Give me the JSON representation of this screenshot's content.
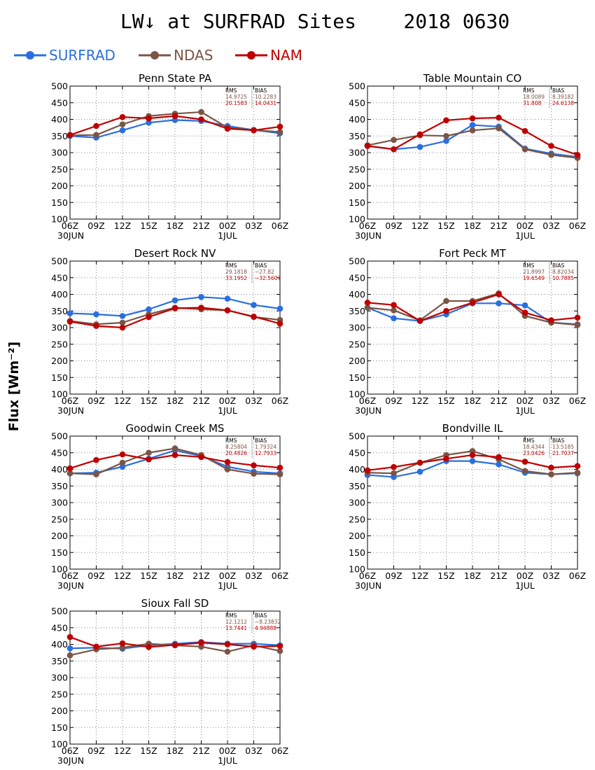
{
  "title": "LW↓ at SURFRAD Sites    2018 0630",
  "ylabel": "Flux [Wm⁻²]",
  "colors": {
    "SURFRAD": "#2a6fe0",
    "NDAS": "#7a5545",
    "NAM": "#c00000"
  },
  "legend": [
    {
      "name": "SURFRAD",
      "color": "#2a6fe0"
    },
    {
      "name": "NDAS",
      "color": "#7a5545"
    },
    {
      "name": "NAM",
      "color": "#c00000"
    }
  ],
  "stats_headers": [
    "RMS",
    "BIAS"
  ],
  "chart_data": [
    {
      "type": "line",
      "title": "Penn State PA",
      "categories": [
        "06Z",
        "09Z",
        "12Z",
        "15Z",
        "18Z",
        "21Z",
        "00Z",
        "03Z",
        "06Z"
      ],
      "date_labels": [
        "30JUN",
        "1JUL"
      ],
      "ylim": [
        100,
        500
      ],
      "yticks": [
        100,
        150,
        200,
        250,
        300,
        350,
        400,
        450,
        500
      ],
      "grid": true,
      "series": [
        {
          "name": "SURFRAD",
          "values": [
            350,
            345,
            367,
            390,
            398,
            395,
            380,
            368,
            358
          ]
        },
        {
          "name": "NDAS",
          "values": [
            352,
            353,
            385,
            410,
            417,
            422,
            375,
            368,
            362
          ]
        },
        {
          "name": "NAM",
          "values": [
            353,
            380,
            407,
            403,
            410,
            400,
            372,
            367,
            378
          ]
        }
      ],
      "stats": [
        {
          "rms": "14.9725",
          "bias": "10.2283"
        },
        {
          "rms": "20.1583",
          "bias": "14.0431"
        }
      ]
    },
    {
      "type": "line",
      "title": "Table Mountain CO",
      "categories": [
        "06Z",
        "09Z",
        "12Z",
        "15Z",
        "18Z",
        "21Z",
        "00Z",
        "03Z",
        "06Z"
      ],
      "date_labels": [
        "30JUN",
        "1JUL"
      ],
      "ylim": [
        100,
        500
      ],
      "yticks": [
        100,
        150,
        200,
        250,
        300,
        350,
        400,
        450,
        500
      ],
      "grid": true,
      "series": [
        {
          "name": "SURFRAD",
          "values": [
            320,
            310,
            317,
            335,
            383,
            378,
            312,
            297,
            287
          ]
        },
        {
          "name": "NDAS",
          "values": [
            322,
            338,
            352,
            350,
            367,
            373,
            310,
            293,
            284
          ]
        },
        {
          "name": "NAM",
          "values": [
            320,
            310,
            355,
            397,
            403,
            405,
            365,
            320,
            293
          ]
        }
      ],
      "stats": [
        {
          "rms": "18.0089",
          "bias": "8.39182"
        },
        {
          "rms": "31.808",
          "bias": "24.6138"
        }
      ]
    },
    {
      "type": "line",
      "title": "Desert Rock NV",
      "categories": [
        "06Z",
        "09Z",
        "12Z",
        "15Z",
        "18Z",
        "21Z",
        "00Z",
        "03Z",
        "06Z"
      ],
      "date_labels": [
        "30JUN",
        "1JUL"
      ],
      "ylim": [
        100,
        500
      ],
      "yticks": [
        100,
        150,
        200,
        250,
        300,
        350,
        400,
        450,
        500
      ],
      "grid": true,
      "series": [
        {
          "name": "SURFRAD",
          "values": [
            343,
            340,
            335,
            355,
            382,
            392,
            387,
            368,
            357
          ]
        },
        {
          "name": "NDAS",
          "values": [
            320,
            310,
            315,
            340,
            360,
            355,
            352,
            332,
            323
          ]
        },
        {
          "name": "NAM",
          "values": [
            318,
            305,
            300,
            332,
            358,
            360,
            352,
            333,
            312
          ]
        }
      ],
      "stats": [
        {
          "rms": "29.1818",
          "bias": "−27.82"
        },
        {
          "rms": "33.1952",
          "bias": "−32.5607"
        }
      ]
    },
    {
      "type": "line",
      "title": "Fort Peck MT",
      "categories": [
        "06Z",
        "09Z",
        "12Z",
        "15Z",
        "18Z",
        "21Z",
        "00Z",
        "03Z",
        "06Z"
      ],
      "date_labels": [
        "30JUN",
        "1JUL"
      ],
      "ylim": [
        100,
        500
      ],
      "yticks": [
        100,
        150,
        200,
        250,
        300,
        350,
        400,
        450,
        500
      ],
      "grid": true,
      "series": [
        {
          "name": "SURFRAD",
          "values": [
            360,
            328,
            320,
            340,
            373,
            373,
            367,
            315,
            310
          ]
        },
        {
          "name": "NDAS",
          "values": [
            360,
            352,
            322,
            380,
            380,
            403,
            335,
            315,
            308
          ]
        },
        {
          "name": "NAM",
          "values": [
            375,
            368,
            320,
            350,
            375,
            400,
            345,
            322,
            330
          ]
        }
      ],
      "stats": [
        {
          "rms": "21.8997",
          "bias": "8.82034"
        },
        {
          "rms": "19.6549",
          "bias": "10.7885"
        }
      ]
    },
    {
      "type": "line",
      "title": "Goodwin Creek MS",
      "categories": [
        "06Z",
        "09Z",
        "12Z",
        "15Z",
        "18Z",
        "21Z",
        "00Z",
        "03Z",
        "06Z"
      ],
      "date_labels": [
        "30JUN",
        "1JUL"
      ],
      "ylim": [
        100,
        500
      ],
      "yticks": [
        100,
        150,
        200,
        250,
        300,
        350,
        400,
        450,
        500
      ],
      "grid": true,
      "series": [
        {
          "name": "SURFRAD",
          "values": [
            388,
            390,
            408,
            432,
            457,
            440,
            408,
            393,
            388
          ]
        },
        {
          "name": "NDAS",
          "values": [
            388,
            385,
            420,
            450,
            463,
            443,
            400,
            387,
            385
          ]
        },
        {
          "name": "NAM",
          "values": [
            403,
            428,
            445,
            430,
            443,
            437,
            422,
            412,
            405
          ]
        }
      ],
      "stats": [
        {
          "rms": "8.25804",
          "bias": "1.79324"
        },
        {
          "rms": "20.4826",
          "bias": "12.7933"
        }
      ]
    },
    {
      "type": "line",
      "title": "Bondville IL",
      "categories": [
        "06Z",
        "09Z",
        "12Z",
        "15Z",
        "18Z",
        "21Z",
        "00Z",
        "03Z",
        "06Z"
      ],
      "date_labels": [
        "30JUN",
        "1JUL"
      ],
      "ylim": [
        100,
        500
      ],
      "yticks": [
        100,
        150,
        200,
        250,
        300,
        350,
        400,
        450,
        500
      ],
      "grid": true,
      "series": [
        {
          "name": "SURFRAD",
          "values": [
            383,
            377,
            393,
            425,
            425,
            415,
            390,
            385,
            388
          ]
        },
        {
          "name": "NDAS",
          "values": [
            390,
            388,
            420,
            443,
            455,
            430,
            395,
            385,
            390
          ]
        },
        {
          "name": "NAM",
          "values": [
            397,
            407,
            420,
            432,
            443,
            437,
            423,
            405,
            410
          ]
        }
      ],
      "stats": [
        {
          "rms": "18.4344",
          "bias": "13.5185"
        },
        {
          "rms": "23.0426",
          "bias": "21.7037"
        }
      ]
    },
    {
      "type": "line",
      "title": "Sioux Fall SD",
      "categories": [
        "06Z",
        "09Z",
        "12Z",
        "15Z",
        "18Z",
        "21Z",
        "00Z",
        "03Z",
        "06Z"
      ],
      "date_labels": [
        "30JUN",
        "1JUL"
      ],
      "ylim": [
        100,
        500
      ],
      "yticks": [
        100,
        150,
        200,
        250,
        300,
        350,
        400,
        450,
        500
      ],
      "grid": true,
      "series": [
        {
          "name": "SURFRAD",
          "values": [
            388,
            390,
            387,
            397,
            402,
            407,
            402,
            402,
            397
          ]
        },
        {
          "name": "NDAS",
          "values": [
            367,
            385,
            390,
            402,
            397,
            393,
            378,
            397,
            380
          ]
        },
        {
          "name": "NAM",
          "values": [
            422,
            393,
            403,
            392,
            398,
            405,
            400,
            393,
            395
          ]
        }
      ],
      "stats": [
        {
          "rms": "12.1212",
          "bias": "−8.23832"
        },
        {
          "rms": "13.7441",
          "bias": "4.94888"
        }
      ]
    }
  ]
}
